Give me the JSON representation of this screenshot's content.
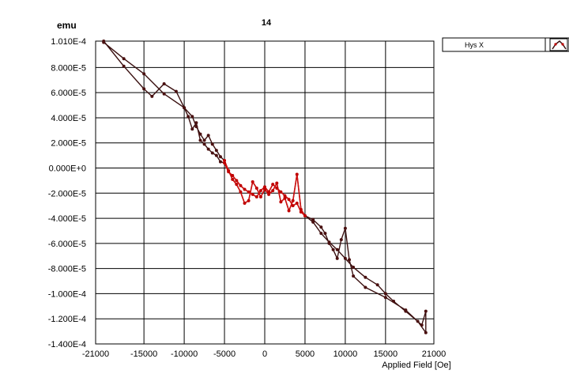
{
  "chart_data": {
    "type": "scatter",
    "title": "14",
    "ylabel": "emu",
    "xlabel": "Applied Field [Oe]",
    "xlim": [
      -21000,
      21000
    ],
    "ylim": [
      -0.00014,
      0.000101
    ],
    "x_ticks": [
      "-21000",
      "-15000",
      "-10000",
      "-5000",
      "0",
      "5000",
      "10000",
      "15000",
      "21000"
    ],
    "y_ticks": [
      "1.010E-4",
      "8.000E-5",
      "6.000E-5",
      "4.000E-5",
      "2.000E-5",
      "0.000E+0",
      "-2.000E-5",
      "-4.000E-5",
      "-6.000E-5",
      "-8.000E-5",
      "-1.000E-4",
      "-1.200E-4",
      "-1.400E-4"
    ],
    "grid": true,
    "legend_position": "top-right",
    "series": [
      {
        "name": "Hys X",
        "color": "#3a1010",
        "x": [
          -20000,
          -17500,
          -15000,
          -12500,
          -10000,
          -9500,
          -9000,
          -8500,
          -8000,
          -7500,
          -7000,
          -6500,
          -6000,
          -5500,
          -5000,
          -4500,
          -4000,
          -3500,
          -3000,
          -2500,
          -2000,
          -1500,
          -1000,
          -500,
          0,
          500,
          1000,
          1500,
          2000,
          2500,
          3000,
          3500,
          4000,
          4500,
          5000,
          6000,
          7000,
          8000,
          9000,
          10000,
          11000,
          12500,
          14000,
          15000,
          16000,
          17500,
          19000,
          20000,
          20000,
          19500,
          17500,
          15000,
          12500,
          11000,
          10500,
          10000,
          9500,
          9000,
          8500,
          8000,
          7500,
          7000,
          6000,
          5000,
          4500,
          4000,
          3500,
          3000,
          2500,
          2000,
          1500,
          1000,
          500,
          0,
          -500,
          -1000,
          -1500,
          -2000,
          -2500,
          -3000,
          -3500,
          -4000,
          -4500,
          -5000,
          -5500,
          -6000,
          -6500,
          -7000,
          -7500,
          -8000,
          -8500,
          -9000,
          -10000,
          -11000,
          -12500,
          -14000,
          -15000,
          -17500,
          -20000
        ],
        "y": [
          0.0001,
          8.7e-05,
          7.5e-05,
          5.9e-05,
          4.8e-05,
          4.1e-05,
          3.1e-05,
          3.6e-05,
          2.2e-05,
          1.9e-05,
          1.5e-05,
          1.2e-05,
          1e-05,
          5e-06,
          4e-06,
          -3e-06,
          -6e-06,
          -1e-05,
          -1.4e-05,
          -1.7e-05,
          -1.9e-05,
          -2.1e-05,
          -2.3e-05,
          -1.8e-05,
          -1.5e-05,
          -1.9e-05,
          -1.3e-05,
          -1.6e-05,
          -1.9e-05,
          -2.2e-05,
          -2.5e-05,
          -3e-05,
          -2.8e-05,
          -3.5e-05,
          -3.8e-05,
          -4.3e-05,
          -5.2e-05,
          -5.9e-05,
          -6.5e-05,
          -7.2e-05,
          -7.9e-05,
          -8.7e-05,
          -9.3e-05,
          -0.0001,
          -0.000106,
          -0.000114,
          -0.000122,
          -0.000131,
          -0.000114,
          -0.000125,
          -0.000113,
          -0.000103,
          -9.5e-05,
          -8.6e-05,
          -7.3e-05,
          -4.8e-05,
          -5.7e-05,
          -7.2e-05,
          -6.5e-05,
          -6e-05,
          -5.2e-05,
          -4.7e-05,
          -4.1e-05,
          -3.8e-05,
          -3.3e-05,
          -5e-06,
          -2.6e-05,
          -3.4e-05,
          -2.4e-05,
          -2.7e-05,
          -1.2e-05,
          -1.8e-05,
          -2.1e-05,
          -1.7e-05,
          -2.3e-05,
          -1.6e-05,
          -1.1e-05,
          -2.6e-05,
          -2.8e-05,
          -1.9e-05,
          -1.3e-05,
          -9e-06,
          -2e-06,
          6e-06,
          9e-06,
          1.4e-05,
          1.9e-05,
          2.6e-05,
          2.2e-05,
          2.7e-05,
          3.3e-05,
          4.1e-05,
          4.8e-05,
          6.1e-05,
          6.7e-05,
          5.7e-05,
          6.3e-05,
          8.1e-05,
          0.000101
        ]
      }
    ]
  }
}
